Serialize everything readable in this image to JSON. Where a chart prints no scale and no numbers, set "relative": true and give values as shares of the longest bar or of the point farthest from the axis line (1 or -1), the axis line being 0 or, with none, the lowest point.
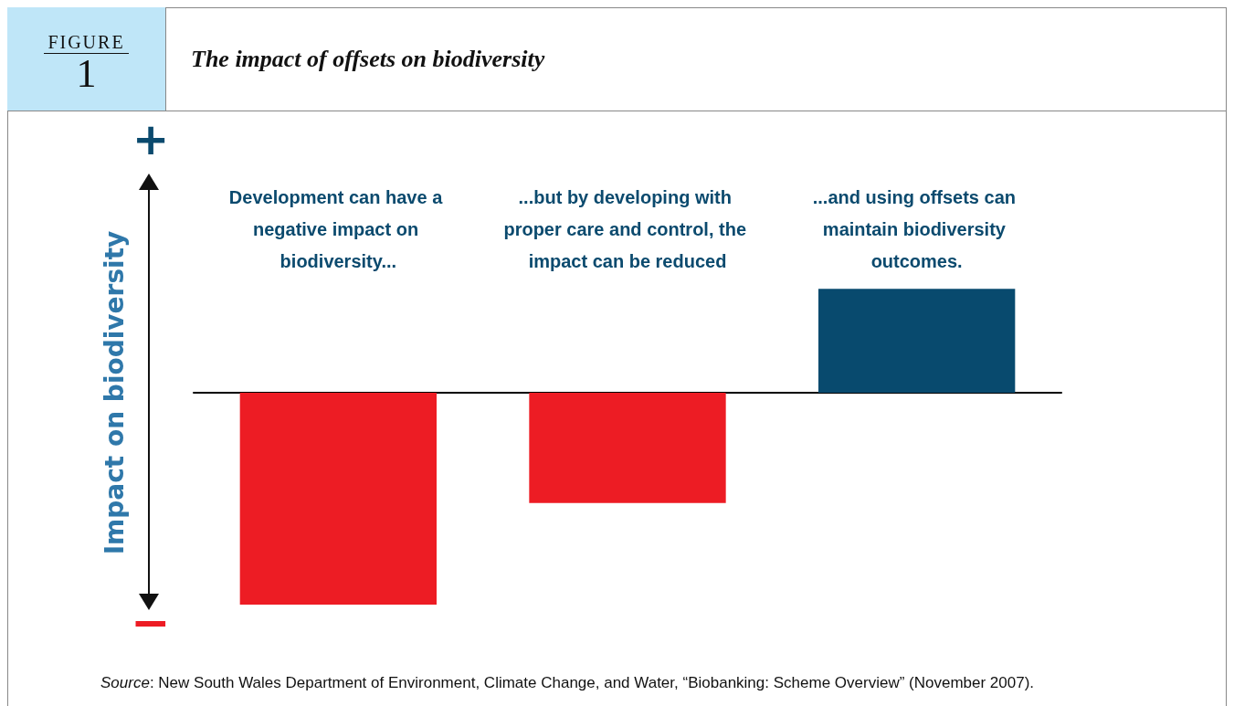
{
  "chart_data": {
    "type": "bar",
    "relative": true,
    "title": "The impact of offsets on biodiversity",
    "ylabel": "Impact on biodiversity",
    "categories": [
      "Development can have a negative impact on biodiversity...",
      "...but by developing with proper care and control, the impact can be reduced",
      "...and using offsets can maintain biodiversity outcomes."
    ],
    "values": [
      -1,
      -0.52,
      0.49
    ],
    "colors": [
      "#ed1c24",
      "#ed1c24",
      "#084a6e"
    ],
    "annotations": [
      "FIGURE",
      "1",
      "+",
      "−",
      "Source: New South Wales Department of Environment, Climate Change, and Water, “Biobanking: Scheme Overview” (November 2007)."
    ],
    "grid": false
  }
}
